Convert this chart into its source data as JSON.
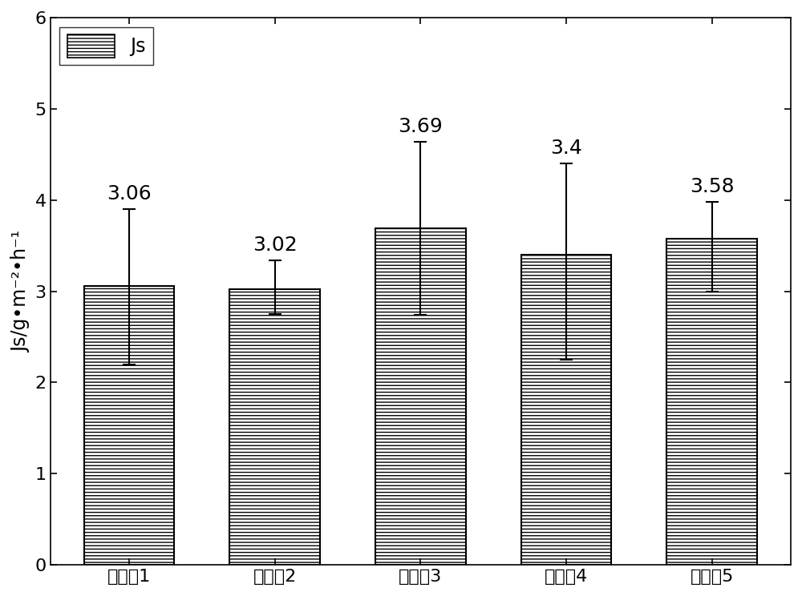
{
  "categories": [
    "对比入1",
    "对比入2",
    "实施入3",
    "实施入4",
    "实施入5"
  ],
  "values": [
    3.06,
    3.02,
    3.69,
    3.4,
    3.58
  ],
  "errors_upper": [
    0.84,
    0.32,
    0.95,
    1.0,
    0.4
  ],
  "errors_lower": [
    0.86,
    0.27,
    0.95,
    1.15,
    0.58
  ],
  "bar_color": "#ffffff",
  "bar_edgecolor": "#000000",
  "hatch": "----",
  "ylabel": "Js/g•m⁻²•h⁻¹",
  "ylim": [
    0,
    6
  ],
  "yticks": [
    0,
    1,
    2,
    3,
    4,
    5,
    6
  ],
  "legend_label": "Js",
  "value_fontsize": 18,
  "label_fontsize": 17,
  "tick_fontsize": 16,
  "bar_width": 0.62,
  "capsize": 6,
  "errorbar_linewidth": 1.5,
  "figsize": [
    10.0,
    7.44
  ],
  "dpi": 100
}
